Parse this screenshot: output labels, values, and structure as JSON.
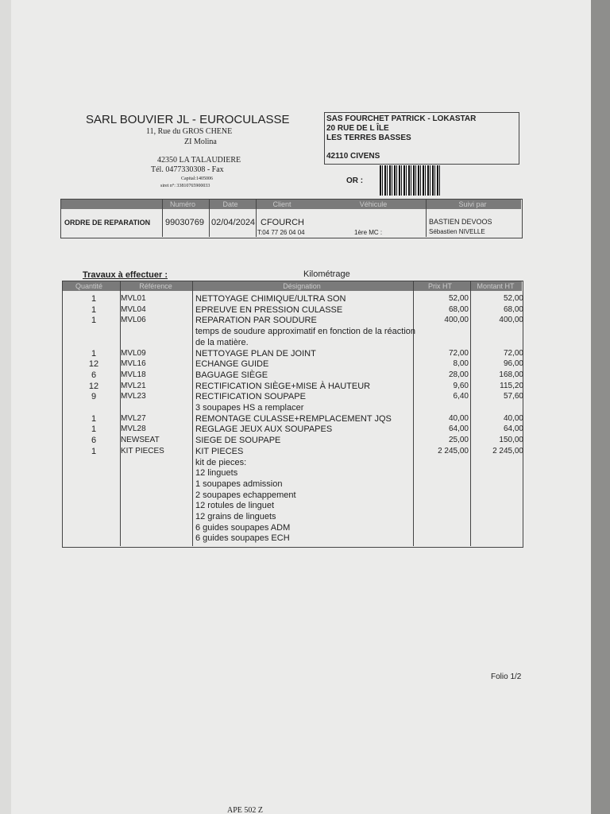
{
  "sender": {
    "name": "SARL BOUVIER JL - EUROCULASSE",
    "lines": [
      "11, Rue du GROS CHENE",
      "ZI Molina",
      "42350 LA TALAUDIERE",
      "Tél. 0477330308 - Fax",
      "Capital:1405006",
      "siret n°: 33810765900033"
    ]
  },
  "recipient": {
    "lines": [
      "SAS FOURCHET PATRICK  - LOKASTAR",
      "20 RUE DE L ÎLE",
      "LES TERRES BASSES",
      "42110  CIVENS"
    ],
    "or_label": "OR :"
  },
  "order": {
    "headers": [
      "Numéro",
      "Date",
      "Client",
      "Véhicule",
      "Suivi par"
    ],
    "title": "ORDRE DE REPARATION",
    "number": "99030769",
    "date": "02/04/2024",
    "client": "CFOURCH",
    "phone": "T:04 77 26 04 04",
    "vehicle": "1ère MC :",
    "followed_by": [
      "BASTIEN DEVOOS",
      "Sébastien NIVELLE"
    ]
  },
  "works": {
    "title": "Travaux à effectuer :",
    "mileage": "Kilométrage",
    "headers": [
      "Quantité",
      "Référence",
      "Désignation",
      "Prix HT",
      "Montant HT"
    ],
    "rows": [
      {
        "qty": "1",
        "ref": "MVL01",
        "desc": "NETTOYAGE CHIMIQUE/ULTRA SON",
        "price": "52,00",
        "amount": "52,00"
      },
      {
        "qty": "1",
        "ref": "MVL04",
        "desc": "EPREUVE EN PRESSION CULASSE",
        "price": "68,00",
        "amount": "68,00"
      },
      {
        "qty": "1",
        "ref": "MVL06",
        "desc": "REPARATION PAR SOUDURE",
        "price": "400,00",
        "amount": "400,00"
      },
      {
        "desc": "temps de soudure approximatif en fonction de la réaction"
      },
      {
        "desc": "de la matière."
      },
      {
        "qty": "1",
        "ref": "MVL09",
        "desc": "NETTOYAGE PLAN DE JOINT",
        "price": "72,00",
        "amount": "72,00"
      },
      {
        "qty": "12",
        "ref": "MVL16",
        "desc": "ECHANGE GUIDE",
        "price": "8,00",
        "amount": "96,00"
      },
      {
        "qty": "6",
        "ref": "MVL18",
        "desc": "BAGUAGE SIÈGE",
        "price": "28,00",
        "amount": "168,00"
      },
      {
        "qty": "12",
        "ref": "MVL21",
        "desc": "RECTIFICATION SIÈGE+MISE À HAUTEUR",
        "price": "9,60",
        "amount": "115,20"
      },
      {
        "qty": "9",
        "ref": "MVL23",
        "desc": "RECTIFICATION SOUPAPE",
        "price": "6,40",
        "amount": "57,60"
      },
      {
        "desc": "3 soupapes HS a remplacer"
      },
      {
        "qty": "1",
        "ref": "MVL27",
        "desc": "REMONTAGE CULASSE+REMPLACEMENT JQS",
        "price": "40,00",
        "amount": "40,00"
      },
      {
        "qty": "1",
        "ref": "MVL28",
        "desc": "REGLAGE JEUX AUX SOUPAPES",
        "price": "64,00",
        "amount": "64,00"
      },
      {
        "qty": "6",
        "ref": "NEWSEAT",
        "desc": "SIEGE DE SOUPAPE",
        "price": "25,00",
        "amount": "150,00"
      },
      {
        "qty": "1",
        "ref": "KIT PIECES",
        "desc": "KIT PIECES",
        "price": "2 245,00",
        "amount": "2 245,00"
      },
      {
        "desc": "kit de pieces:"
      },
      {
        "desc": "12 linguets"
      },
      {
        "desc": "1 soupapes admission"
      },
      {
        "desc": "2 soupapes echappement"
      },
      {
        "desc": "12 rotules de linguet"
      },
      {
        "desc": "12 grains de linguets"
      },
      {
        "desc": "6 guides soupapes ADM"
      },
      {
        "desc": "6 guides soupapes ECH"
      }
    ]
  },
  "footer": {
    "folio": "Folio 1/2",
    "ape": "APE 502 Z"
  }
}
